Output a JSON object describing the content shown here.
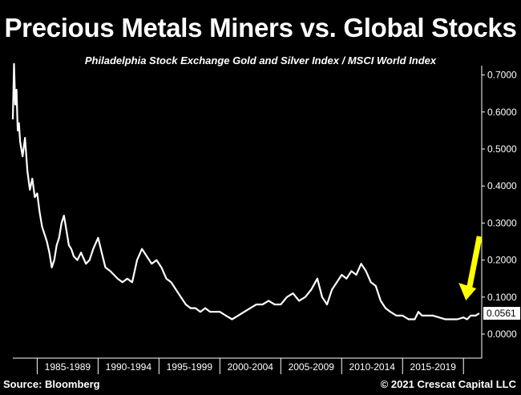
{
  "header": {
    "title": "Precious Metals Miners vs. Global Stocks",
    "subtitle": "Philadelphia Stock Exchange Gold and Silver Index / MSCI World Index"
  },
  "footer": {
    "source": "Source: Bloomberg",
    "copyright": "© 2021 Crescat Capital LLC"
  },
  "colors": {
    "background": "#000000",
    "line": "#ffffff",
    "arrow": "#ffff00",
    "last_value_box": "#ffffff"
  },
  "chart_data": {
    "type": "line",
    "title": "Precious Metals Miners vs. Global Stocks",
    "subtitle": "Philadelphia Stock Exchange Gold and Silver Index / MSCI World Index",
    "xlabel": "",
    "ylabel": "",
    "x_range": [
      1983.0,
      2021.5
    ],
    "ylim": [
      -0.065,
      0.725
    ],
    "y_ticks": [
      0.0,
      0.1,
      0.2,
      0.3,
      0.4,
      0.5,
      0.6,
      0.7
    ],
    "y_tick_labels": [
      "0.0000",
      "0.1000",
      "0.2000",
      "0.3000",
      "0.4000",
      "0.5000",
      "0.6000",
      "0.7000"
    ],
    "x_period_labels": [
      "1985-1989",
      "1990-1994",
      "1995-1999",
      "2000-2004",
      "2005-2009",
      "2010-2014",
      "2015-2019"
    ],
    "x_period_starts": [
      1985,
      1990,
      1995,
      2000,
      2005,
      2010,
      2015,
      2020
    ],
    "grid": false,
    "y_axis_side": "right",
    "last_value": 0.0561,
    "last_value_label": "0.0561",
    "annotation": "yellow arrow pointing to latest value",
    "series": [
      {
        "x": [
          1983.0,
          1983.1,
          1983.2,
          1983.3,
          1983.4,
          1983.5,
          1983.6,
          1983.8,
          1984.0,
          1984.2,
          1984.4,
          1984.6,
          1984.8,
          1985.0,
          1985.2,
          1985.4,
          1985.6,
          1985.8,
          1986.0,
          1986.2,
          1986.4,
          1986.6,
          1986.8,
          1987.0,
          1987.2,
          1987.4,
          1987.6,
          1987.8,
          1988.0,
          1988.3,
          1988.6,
          1989.0,
          1989.3,
          1989.6,
          1990.0,
          1990.3,
          1990.6,
          1991.0,
          1991.3,
          1991.6,
          1992.0,
          1992.4,
          1992.8,
          1993.2,
          1993.6,
          1994.0,
          1994.4,
          1994.8,
          1995.2,
          1995.6,
          1996.0,
          1996.4,
          1996.8,
          1997.2,
          1997.6,
          1998.0,
          1998.4,
          1998.8,
          1999.2,
          1999.6,
          2000.0,
          2000.5,
          2001.0,
          2001.5,
          2002.0,
          2002.5,
          2003.0,
          2003.5,
          2004.0,
          2004.5,
          2005.0,
          2005.5,
          2006.0,
          2006.5,
          2007.0,
          2007.5,
          2008.0,
          2008.4,
          2008.8,
          2009.2,
          2009.6,
          2010.0,
          2010.4,
          2010.8,
          2011.2,
          2011.6,
          2012.0,
          2012.4,
          2012.8,
          2013.2,
          2013.6,
          2014.0,
          2014.5,
          2015.0,
          2015.5,
          2016.0,
          2016.3,
          2016.6,
          2017.0,
          2017.5,
          2018.0,
          2018.5,
          2019.0,
          2019.5,
          2020.0,
          2020.3,
          2020.6,
          2021.0,
          2021.3
        ],
        "y": [
          0.58,
          0.73,
          0.62,
          0.66,
          0.55,
          0.57,
          0.52,
          0.48,
          0.53,
          0.44,
          0.39,
          0.42,
          0.37,
          0.38,
          0.33,
          0.29,
          0.27,
          0.25,
          0.22,
          0.18,
          0.2,
          0.24,
          0.26,
          0.3,
          0.32,
          0.28,
          0.24,
          0.23,
          0.21,
          0.2,
          0.22,
          0.19,
          0.2,
          0.23,
          0.26,
          0.22,
          0.18,
          0.17,
          0.16,
          0.15,
          0.14,
          0.15,
          0.14,
          0.2,
          0.23,
          0.21,
          0.19,
          0.2,
          0.18,
          0.15,
          0.14,
          0.12,
          0.1,
          0.08,
          0.07,
          0.07,
          0.06,
          0.07,
          0.06,
          0.06,
          0.06,
          0.05,
          0.04,
          0.05,
          0.06,
          0.07,
          0.08,
          0.08,
          0.09,
          0.08,
          0.08,
          0.1,
          0.11,
          0.09,
          0.1,
          0.12,
          0.15,
          0.1,
          0.08,
          0.12,
          0.14,
          0.16,
          0.15,
          0.17,
          0.16,
          0.19,
          0.17,
          0.14,
          0.13,
          0.09,
          0.07,
          0.06,
          0.05,
          0.05,
          0.04,
          0.04,
          0.06,
          0.05,
          0.05,
          0.05,
          0.045,
          0.04,
          0.04,
          0.04,
          0.045,
          0.04,
          0.05,
          0.05,
          0.0561
        ]
      }
    ]
  }
}
